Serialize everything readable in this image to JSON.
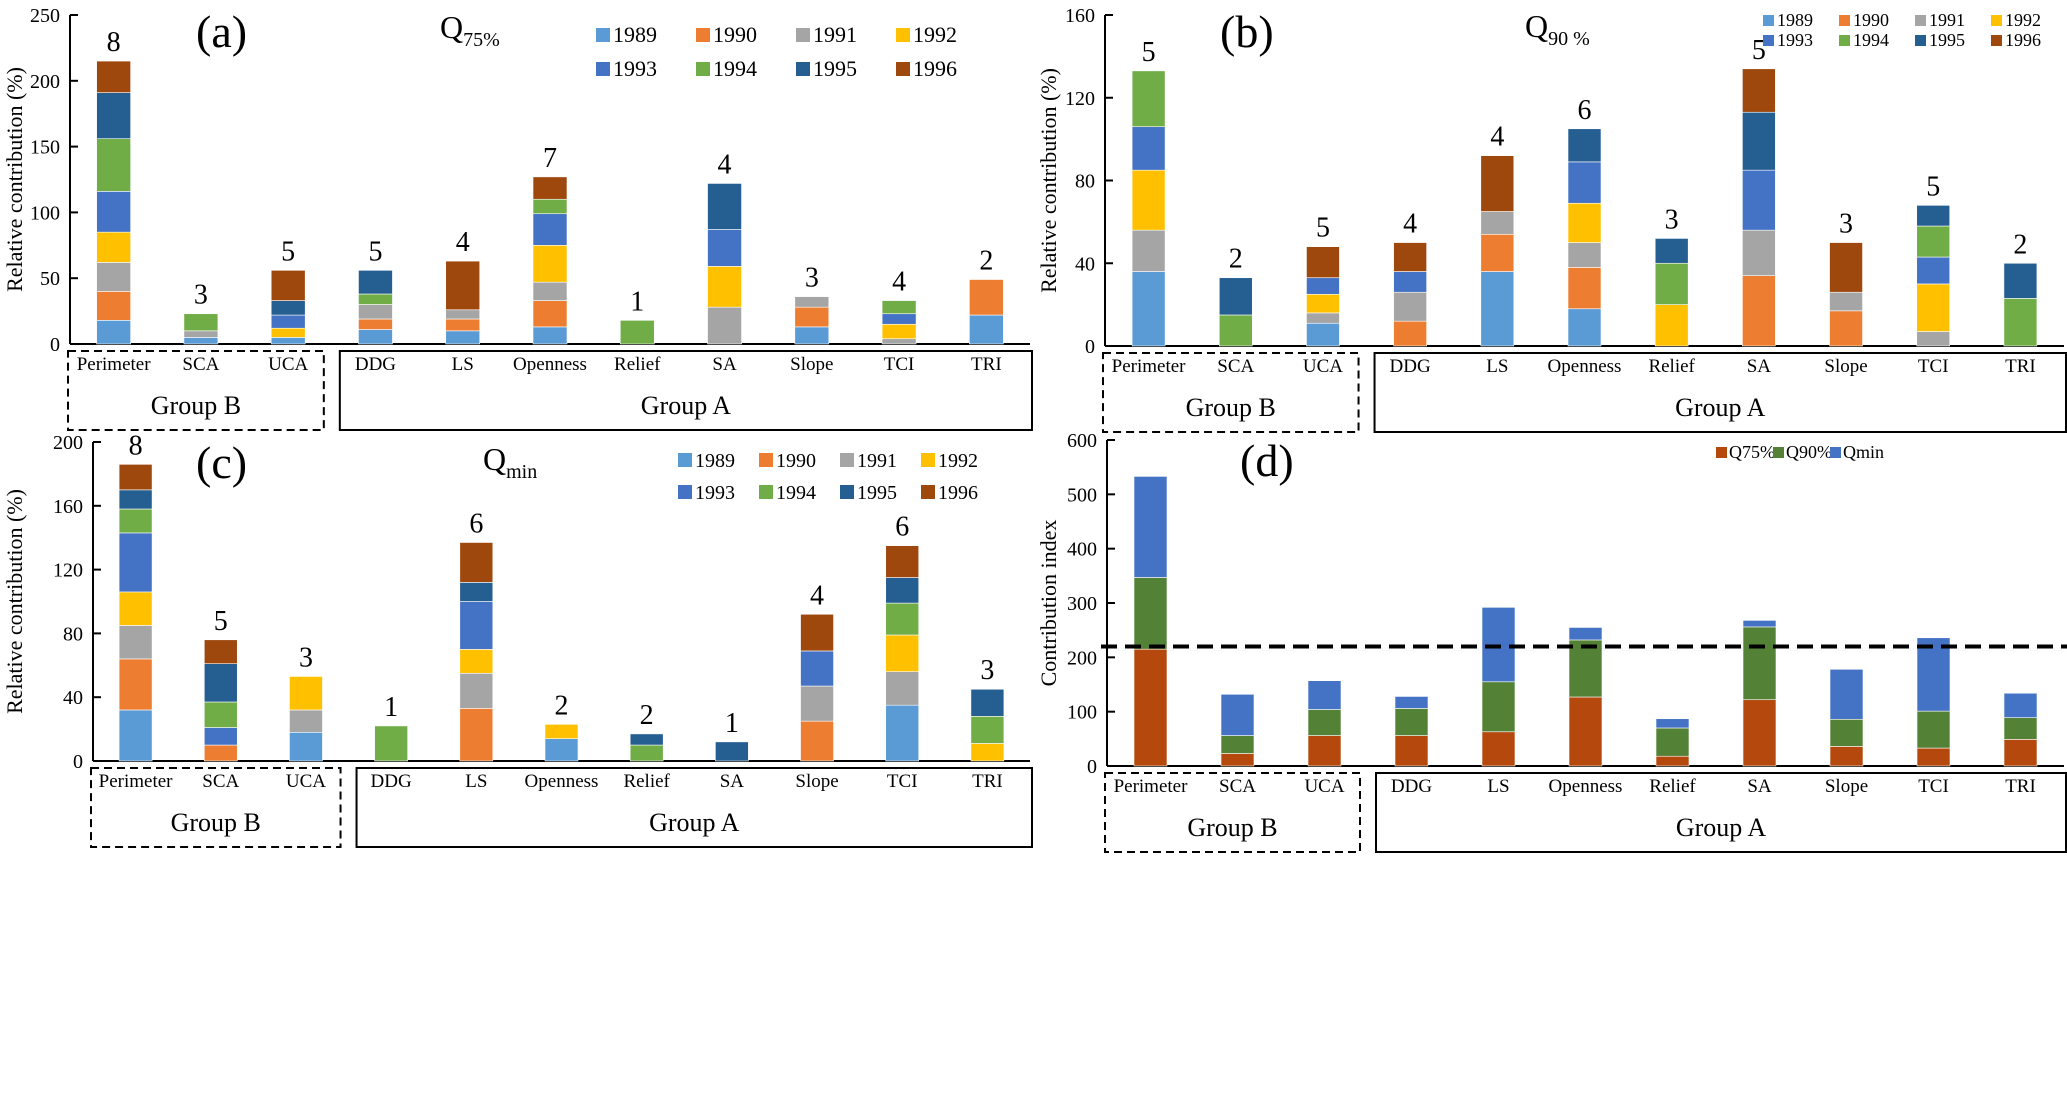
{
  "figure": {
    "series_colors": {
      "1989": "#5B9BD5",
      "1990": "#ED7D31",
      "1991": "#A5A5A5",
      "1992": "#FFC000",
      "1993": "#4472C4",
      "1994": "#70AD47",
      "1995": "#255E91",
      "1996": "#9E480E",
      "Q75%": "#B5490D",
      "Q90%": "#538135",
      "Qmin": "#4472C4"
    },
    "groups": [
      {
        "label": "Group B",
        "style": "dashed",
        "categories": [
          "Perimeter",
          "SCA",
          "UCA"
        ]
      },
      {
        "label": "Group A",
        "style": "solid",
        "categories": [
          "DDG",
          "LS",
          "Openness",
          "Relief",
          "SA",
          "Slope",
          "TCI",
          "TRI"
        ]
      }
    ]
  },
  "chart_data": [
    {
      "id": "a",
      "type": "bar",
      "stacked": true,
      "panel_label": "(a)",
      "title": "Q",
      "title_subscript": "75%",
      "xlabel": "",
      "ylabel": "Relative contribution (%)",
      "ylim": [
        0,
        250
      ],
      "yticks": [
        0,
        50,
        100,
        150,
        200,
        250
      ],
      "legend_position": "top-right",
      "categories": [
        "Perimeter",
        "SCA",
        "UCA",
        "DDG",
        "LS",
        "Openness",
        "Relief",
        "SA",
        "Slope",
        "TCI",
        "TRI"
      ],
      "bar_counts": [
        8,
        3,
        5,
        5,
        4,
        7,
        1,
        4,
        3,
        4,
        2
      ],
      "series": [
        {
          "name": "1989",
          "values": [
            18,
            5,
            5,
            11,
            10,
            13,
            0,
            0,
            13,
            0,
            22
          ]
        },
        {
          "name": "1990",
          "values": [
            22,
            0,
            0,
            8,
            9,
            20,
            0,
            0,
            15,
            0,
            27
          ]
        },
        {
          "name": "1991",
          "values": [
            22,
            5,
            0,
            11,
            7,
            14,
            0,
            28,
            8,
            4,
            0
          ]
        },
        {
          "name": "1992",
          "values": [
            23,
            0,
            7,
            0,
            0,
            28,
            0,
            31,
            0,
            11,
            0
          ]
        },
        {
          "name": "1993",
          "values": [
            31,
            0,
            10,
            0,
            0,
            24,
            0,
            28,
            0,
            8,
            0
          ]
        },
        {
          "name": "1994",
          "values": [
            40,
            13,
            0,
            8,
            0,
            11,
            18,
            0,
            0,
            10,
            0
          ]
        },
        {
          "name": "1995",
          "values": [
            35,
            0,
            11,
            18,
            0,
            0,
            0,
            35,
            0,
            0,
            0
          ]
        },
        {
          "name": "1996",
          "values": [
            24,
            0,
            23,
            0,
            37,
            17,
            0,
            0,
            0,
            0,
            0
          ]
        }
      ]
    },
    {
      "id": "b",
      "type": "bar",
      "stacked": true,
      "panel_label": "(b)",
      "title": "Q",
      "title_subscript": "90 %",
      "xlabel": "",
      "ylabel": "Relative contribution (%)",
      "ylim": [
        0,
        160
      ],
      "yticks": [
        0,
        40,
        80,
        120,
        160
      ],
      "legend_position": "top-right",
      "categories": [
        "Perimeter",
        "SCA",
        "UCA",
        "DDG",
        "LS",
        "Openness",
        "Relief",
        "SA",
        "Slope",
        "TCI",
        "TRI"
      ],
      "bar_counts": [
        5,
        2,
        5,
        4,
        4,
        6,
        3,
        5,
        3,
        5,
        2
      ],
      "series": [
        {
          "name": "1989",
          "values": [
            36,
            0,
            11,
            0,
            36,
            18,
            0,
            0,
            0,
            0,
            0
          ]
        },
        {
          "name": "1990",
          "values": [
            0,
            0,
            0,
            12,
            18,
            20,
            0,
            34,
            17,
            0,
            0
          ]
        },
        {
          "name": "1991",
          "values": [
            20,
            0,
            5,
            14,
            11,
            12,
            0,
            22,
            9,
            7,
            0
          ]
        },
        {
          "name": "1992",
          "values": [
            29,
            0,
            9,
            0,
            0,
            19,
            20,
            0,
            0,
            23,
            0
          ]
        },
        {
          "name": "1993",
          "values": [
            21,
            0,
            8,
            10,
            0,
            20,
            0,
            29,
            0,
            13,
            0
          ]
        },
        {
          "name": "1994",
          "values": [
            27,
            15,
            0,
            0,
            0,
            0,
            20,
            0,
            0,
            15,
            23
          ]
        },
        {
          "name": "1995",
          "values": [
            0,
            18,
            0,
            0,
            0,
            16,
            12,
            28,
            0,
            10,
            17
          ]
        },
        {
          "name": "1996",
          "values": [
            0,
            0,
            15,
            14,
            27,
            0,
            0,
            21,
            24,
            0,
            0
          ]
        }
      ]
    },
    {
      "id": "c",
      "type": "bar",
      "stacked": true,
      "panel_label": "(c)",
      "title": "Q",
      "title_subscript": "min",
      "xlabel": "",
      "ylabel": "Relative contribution (%)",
      "ylim": [
        0,
        200
      ],
      "yticks": [
        0,
        40,
        80,
        120,
        160,
        200
      ],
      "legend_position": "top-right",
      "categories": [
        "Perimeter",
        "SCA",
        "UCA",
        "DDG",
        "LS",
        "Openness",
        "Relief",
        "SA",
        "Slope",
        "TCI",
        "TRI"
      ],
      "bar_counts": [
        8,
        5,
        3,
        1,
        6,
        2,
        2,
        1,
        4,
        6,
        3
      ],
      "series": [
        {
          "name": "1989",
          "values": [
            32,
            0,
            18,
            0,
            0,
            14,
            0,
            0,
            0,
            35,
            0
          ]
        },
        {
          "name": "1990",
          "values": [
            32,
            10,
            0,
            0,
            33,
            0,
            0,
            0,
            25,
            0,
            0
          ]
        },
        {
          "name": "1991",
          "values": [
            21,
            0,
            14,
            0,
            22,
            0,
            0,
            0,
            22,
            21,
            0
          ]
        },
        {
          "name": "1992",
          "values": [
            21,
            0,
            21,
            0,
            15,
            9,
            0,
            0,
            0,
            23,
            11
          ]
        },
        {
          "name": "1993",
          "values": [
            37,
            11,
            0,
            0,
            30,
            0,
            0,
            0,
            22,
            0,
            0
          ]
        },
        {
          "name": "1994",
          "values": [
            15,
            16,
            0,
            22,
            0,
            0,
            10,
            0,
            0,
            20,
            17
          ]
        },
        {
          "name": "1995",
          "values": [
            12,
            24,
            0,
            0,
            12,
            0,
            7,
            12,
            0,
            16,
            17
          ]
        },
        {
          "name": "1996",
          "values": [
            16,
            15,
            0,
            0,
            25,
            0,
            0,
            0,
            23,
            20,
            0
          ]
        }
      ]
    },
    {
      "id": "d",
      "type": "bar",
      "stacked": true,
      "panel_label": "(d)",
      "title": "",
      "title_subscript": "",
      "xlabel": "",
      "ylabel": "Contribution index",
      "ylim": [
        0,
        600
      ],
      "yticks": [
        0,
        100,
        200,
        300,
        400,
        500,
        600
      ],
      "legend_position": "top-right",
      "threshold_line": {
        "value": 220,
        "style": "dashed"
      },
      "categories": [
        "Perimeter",
        "SCA",
        "UCA",
        "DDG",
        "LS",
        "Openness",
        "Relief",
        "SA",
        "Slope",
        "TCI",
        "TRI"
      ],
      "bar_counts": [],
      "series": [
        {
          "name": "Q75%",
          "values": [
            215,
            23,
            56,
            56,
            63,
            127,
            18,
            122,
            36,
            33,
            49
          ]
        },
        {
          "name": "Q90%",
          "values": [
            132,
            33,
            48,
            50,
            92,
            105,
            52,
            134,
            50,
            68,
            40
          ]
        },
        {
          "name": "Qmin",
          "values": [
            186,
            76,
            53,
            22,
            137,
            23,
            17,
            12,
            92,
            135,
            45
          ]
        }
      ]
    }
  ]
}
